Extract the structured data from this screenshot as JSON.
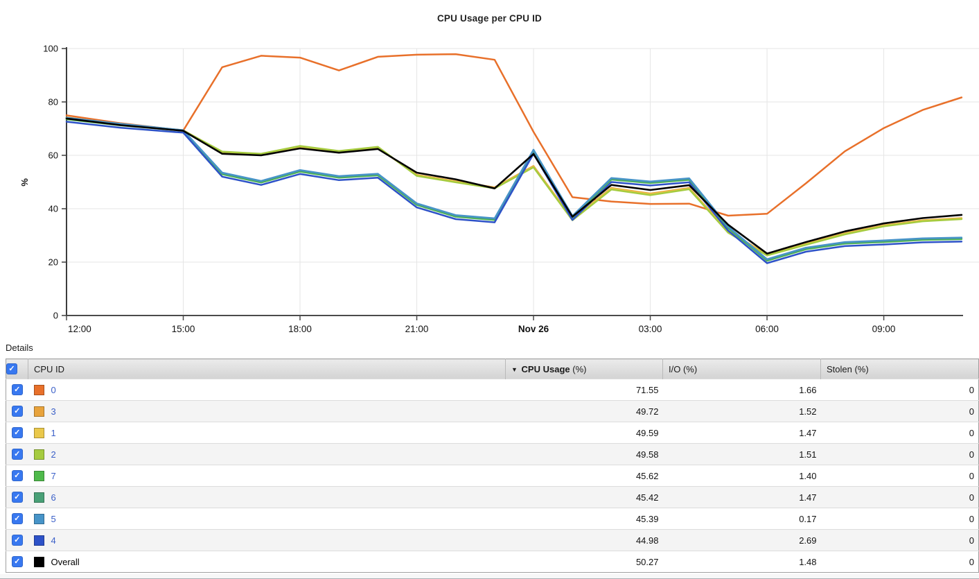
{
  "details": {
    "label": "Details"
  },
  "colors": {
    "checkbox": "#3878f0",
    "link": "#3a5fc8",
    "axis": "#3c3c3c",
    "grid": "#e5e5e5",
    "header_text": "#1a1a1a"
  },
  "table": {
    "sort_indicator": "▼",
    "columns": [
      {
        "key": "cpu-id",
        "name": "CPU ID",
        "unit": "",
        "sorted": false
      },
      {
        "key": "cpu-usage",
        "name": "CPU Usage",
        "unit": "(%)",
        "sorted": true
      },
      {
        "key": "io",
        "name": "I/O",
        "unit": "(%)",
        "sorted": false
      },
      {
        "key": "stolen",
        "name": "Stolen",
        "unit": "(%)",
        "sorted": false
      }
    ]
  },
  "chart_data": {
    "type": "line",
    "title": "CPU Usage per CPU ID",
    "xlabel": "",
    "ylabel": "%",
    "ylim": [
      0,
      100
    ],
    "grid": true,
    "y_ticks": [
      0,
      20,
      40,
      60,
      80,
      100
    ],
    "x_ticks": [
      {
        "h": 0,
        "label": "12:00",
        "bold": false
      },
      {
        "h": 3,
        "label": "15:00",
        "bold": false
      },
      {
        "h": 6,
        "label": "18:00",
        "bold": false
      },
      {
        "h": 9,
        "label": "21:00",
        "bold": false
      },
      {
        "h": 12,
        "label": "Nov 26",
        "bold": true
      },
      {
        "h": 15,
        "label": "03:00",
        "bold": false
      },
      {
        "h": 18,
        "label": "06:00",
        "bold": false
      },
      {
        "h": 21,
        "label": "09:00",
        "bold": false
      }
    ],
    "hours": [
      0,
      1.4,
      3,
      4,
      5,
      6,
      7,
      8,
      9,
      10,
      11,
      12,
      13,
      14,
      15,
      16,
      17,
      18,
      19,
      20,
      21,
      22,
      23
    ],
    "series": [
      {
        "name": "0",
        "overall": false,
        "color": "#e8702a",
        "cpu_usage": "71.55",
        "io": "1.66",
        "stolen": "0",
        "values": [
          75.0,
          72.0,
          69.3,
          93.0,
          97.3,
          96.6,
          91.8,
          96.9,
          97.7,
          97.9,
          95.8,
          68.8,
          44.3,
          42.7,
          41.8,
          41.9,
          37.4,
          38.1,
          49.5,
          61.5,
          70.2,
          77.0,
          81.7
        ]
      },
      {
        "name": "3",
        "overall": false,
        "color": "#e8a33c",
        "cpu_usage": "49.72",
        "io": "1.52",
        "stolen": "0",
        "values": [
          74.2,
          71.6,
          69.4,
          61.2,
          60.4,
          63.1,
          61.4,
          62.8,
          52.7,
          50.3,
          48.0,
          56.0,
          36.2,
          47.8,
          45.7,
          47.8,
          31.6,
          22.9,
          26.9,
          30.8,
          33.8,
          35.7,
          36.5
        ]
      },
      {
        "name": "1",
        "overall": false,
        "color": "#eac84b",
        "cpu_usage": "49.59",
        "io": "1.47",
        "stolen": "0",
        "values": [
          74.0,
          71.5,
          69.3,
          61.0,
          60.2,
          63.3,
          61.2,
          63.0,
          52.5,
          50.1,
          47.8,
          55.7,
          35.9,
          47.5,
          45.4,
          47.5,
          31.3,
          22.7,
          26.7,
          30.6,
          33.6,
          35.5,
          36.3
        ]
      },
      {
        "name": "2",
        "overall": false,
        "color": "#a5cb3f",
        "cpu_usage": "49.58",
        "io": "1.51",
        "stolen": "0",
        "values": [
          74.1,
          71.4,
          69.3,
          61.4,
          60.6,
          63.5,
          61.6,
          63.2,
          52.3,
          49.9,
          47.6,
          55.5,
          35.7,
          47.2,
          45.1,
          47.3,
          31.0,
          22.5,
          26.5,
          30.4,
          33.4,
          35.3,
          36.1
        ]
      },
      {
        "name": "7",
        "overall": false,
        "color": "#4fba4b",
        "cpu_usage": "45.62",
        "io": "1.40",
        "stolen": "0",
        "values": [
          73.5,
          71.2,
          69.2,
          52.9,
          49.8,
          53.9,
          51.6,
          52.5,
          41.4,
          37.0,
          35.8,
          61.5,
          36.7,
          50.9,
          49.6,
          50.8,
          32.7,
          20.5,
          24.8,
          26.9,
          27.5,
          28.3,
          28.6
        ]
      },
      {
        "name": "6",
        "overall": false,
        "color": "#49a077",
        "cpu_usage": "45.42",
        "io": "1.47",
        "stolen": "0",
        "values": [
          73.8,
          71.5,
          69.3,
          53.2,
          50.1,
          54.2,
          51.9,
          52.8,
          41.7,
          37.3,
          36.1,
          61.8,
          37.0,
          51.2,
          49.9,
          51.1,
          33.0,
          20.8,
          25.1,
          27.2,
          27.8,
          28.6,
          28.9
        ]
      },
      {
        "name": "5",
        "overall": false,
        "color": "#4794c8",
        "cpu_usage": "45.39",
        "io": "0.17",
        "stolen": "0",
        "values": [
          74.1,
          71.8,
          69.4,
          53.5,
          50.4,
          54.5,
          52.2,
          53.1,
          42.0,
          37.6,
          36.4,
          62.1,
          37.3,
          51.5,
          50.2,
          51.4,
          33.3,
          21.1,
          25.4,
          27.5,
          28.1,
          28.9,
          29.2
        ]
      },
      {
        "name": "4",
        "overall": false,
        "color": "#2d52c8",
        "cpu_usage": "44.98",
        "io": "2.69",
        "stolen": "0",
        "values": [
          72.6,
          70.3,
          68.5,
          52.0,
          48.9,
          53.0,
          50.7,
          51.6,
          40.5,
          36.1,
          34.9,
          60.6,
          35.8,
          50.0,
          48.7,
          49.9,
          31.8,
          19.6,
          23.9,
          26.0,
          26.6,
          27.4,
          27.7
        ]
      },
      {
        "name": "Overall",
        "overall": true,
        "color": "#000000",
        "cpu_usage": "50.27",
        "io": "1.48",
        "stolen": "0",
        "values": [
          73.8,
          71.3,
          69.2,
          60.6,
          60.0,
          62.6,
          61.0,
          62.4,
          53.5,
          51.0,
          47.6,
          60.5,
          37.0,
          48.9,
          47.0,
          48.8,
          34.0,
          23.2,
          27.5,
          31.5,
          34.5,
          36.5,
          37.7
        ]
      }
    ]
  }
}
